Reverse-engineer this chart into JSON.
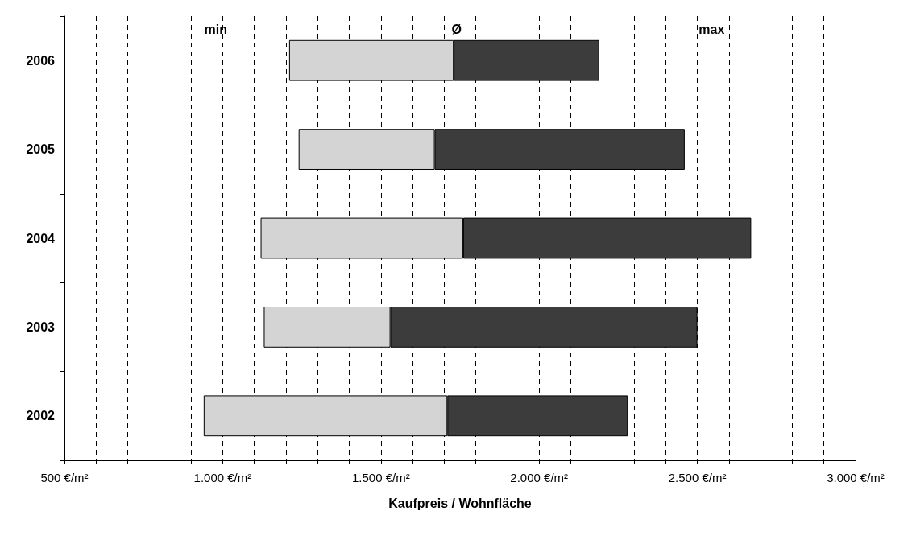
{
  "chart_data": {
    "type": "bar",
    "orientation": "horizontal",
    "xlabel": "Kaufpreis / Wohnfläche",
    "categories": [
      "2006",
      "2005",
      "2004",
      "2003",
      "2002"
    ],
    "series": [
      {
        "color": "#d4d4d4",
        "base": [
          1210,
          1240,
          1120,
          1130,
          940
        ],
        "values": [
          520,
          430,
          640,
          400,
          770
        ]
      },
      {
        "color": "#3c3c3c",
        "base": [
          1730,
          1670,
          1760,
          1530,
          1710
        ],
        "values": [
          460,
          790,
          910,
          970,
          570
        ]
      }
    ],
    "annotations": [
      "min",
      "Ø",
      "max"
    ],
    "xlim": [
      500,
      3000
    ],
    "xticks": [
      {
        "value": 500,
        "label": "500 €/m²"
      },
      {
        "value": 600,
        "label": null
      },
      {
        "value": 700,
        "label": null
      },
      {
        "value": 800,
        "label": null
      },
      {
        "value": 900,
        "label": null
      },
      {
        "value": 1000,
        "label": "1.000 €/m²"
      },
      {
        "value": 1100,
        "label": null
      },
      {
        "value": 1200,
        "label": null
      },
      {
        "value": 1300,
        "label": null
      },
      {
        "value": 1400,
        "label": null
      },
      {
        "value": 1500,
        "label": "1.500 €/m²"
      },
      {
        "value": 1600,
        "label": null
      },
      {
        "value": 1700,
        "label": null
      },
      {
        "value": 1800,
        "label": null
      },
      {
        "value": 1900,
        "label": null
      },
      {
        "value": 2000,
        "label": "2.000 €/m²"
      },
      {
        "value": 2100,
        "label": null
      },
      {
        "value": 2200,
        "label": null
      },
      {
        "value": 2300,
        "label": null
      },
      {
        "value": 2400,
        "label": null
      },
      {
        "value": 2500,
        "label": "2.500 €/m²"
      },
      {
        "value": 2600,
        "label": null
      },
      {
        "value": 2700,
        "label": null
      },
      {
        "value": 2800,
        "label": null
      },
      {
        "value": 2900,
        "label": null
      },
      {
        "value": 3000,
        "label": "3.000 €/m²"
      }
    ],
    "grid": "x"
  }
}
